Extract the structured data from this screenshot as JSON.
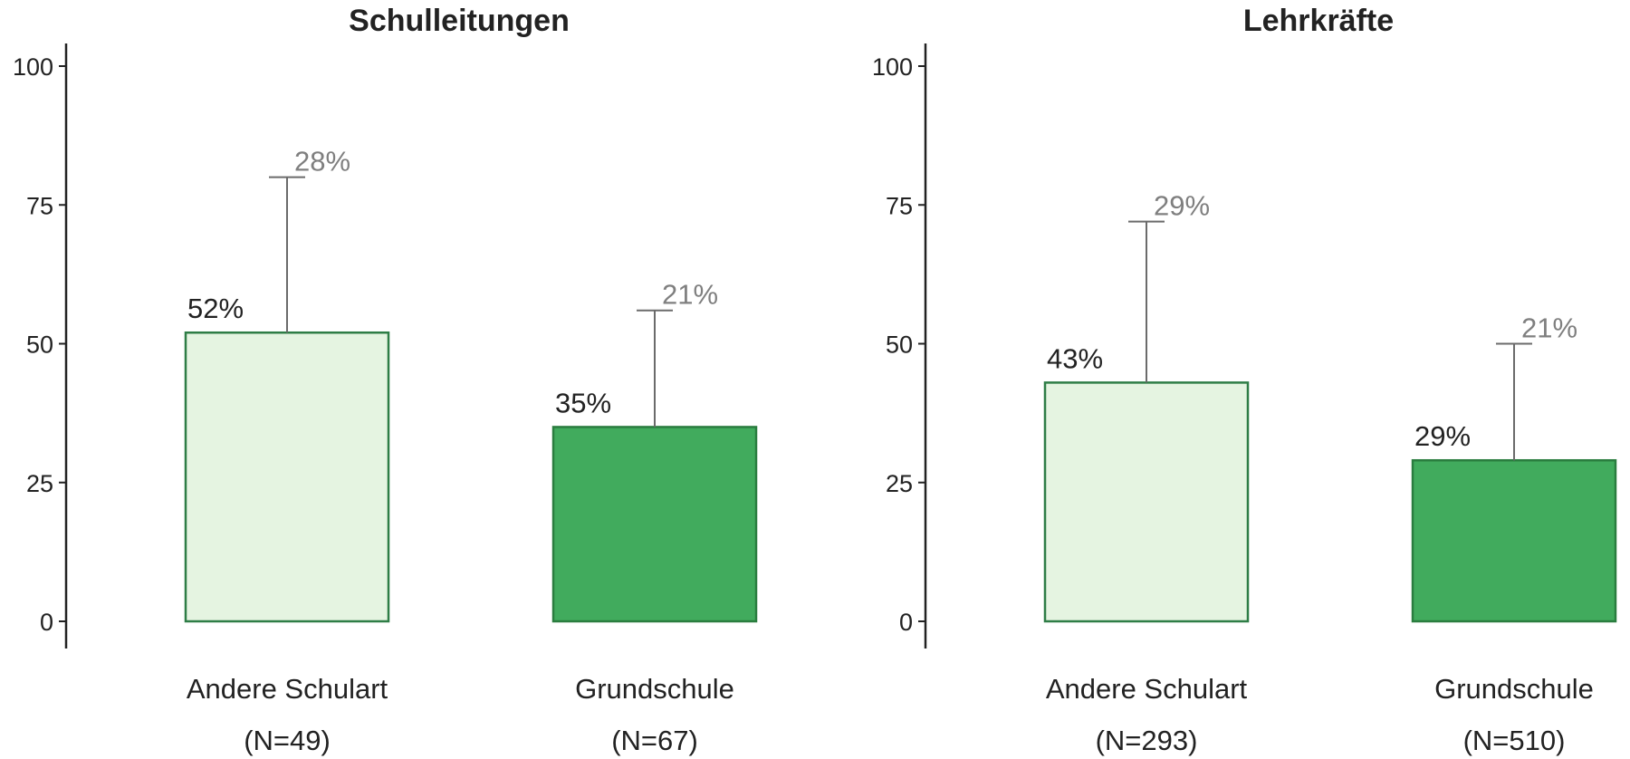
{
  "chart_data": [
    {
      "type": "bar",
      "title": "Schulleitungen",
      "categories": [
        "Andere Schulart",
        "Grundschule"
      ],
      "n_labels": [
        "(N=49)",
        "(N=67)"
      ],
      "values": [
        52,
        35
      ],
      "value_labels": [
        "52%",
        "35%"
      ],
      "errors": [
        28,
        21
      ],
      "error_labels": [
        "28%",
        "21%"
      ],
      "colors": [
        "#e5f4e1",
        "#41ab5d"
      ],
      "edge_colors": [
        "#2e7d46",
        "#2a7d3f"
      ],
      "ylim": [
        0,
        100
      ],
      "yticks": [
        0,
        25,
        50,
        75,
        100
      ],
      "grid": false
    },
    {
      "type": "bar",
      "title": "Lehrkräfte",
      "categories": [
        "Andere Schulart",
        "Grundschule"
      ],
      "n_labels": [
        "(N=293)",
        "(N=510)"
      ],
      "values": [
        43,
        29
      ],
      "value_labels": [
        "43%",
        "29%"
      ],
      "errors": [
        29,
        21
      ],
      "error_labels": [
        "29%",
        "21%"
      ],
      "colors": [
        "#e5f4e1",
        "#41ab5d"
      ],
      "edge_colors": [
        "#2e7d46",
        "#2a7d3f"
      ],
      "ylim": [
        0,
        100
      ],
      "yticks": [
        0,
        25,
        50,
        75,
        100
      ],
      "grid": false
    }
  ]
}
